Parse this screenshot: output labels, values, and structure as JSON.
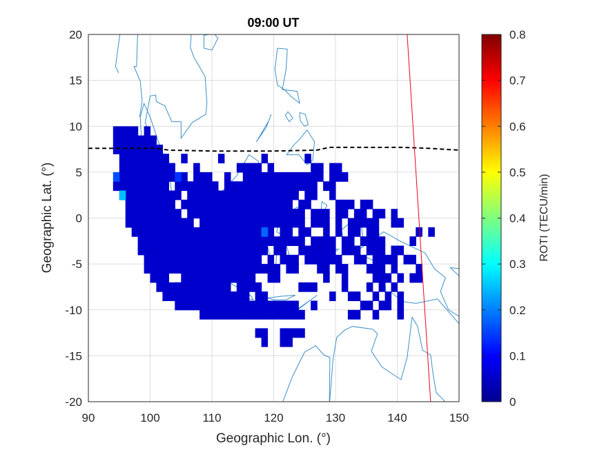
{
  "chart_data": {
    "type": "heatmap",
    "title": "09:00 UT",
    "xlabel": "Geographic Lon. (°)",
    "ylabel": "Geographic Lat. (°)",
    "xlim": [
      90,
      150
    ],
    "ylim": [
      -20,
      20
    ],
    "xticks": [
      "90",
      "100",
      "110",
      "120",
      "130",
      "140",
      "150"
    ],
    "yticks": [
      "20",
      "15",
      "10",
      "5",
      "0",
      "-5",
      "-10",
      "-15",
      "-20"
    ],
    "grid": true,
    "colorbar": {
      "label": "ROTI (TECU/min)",
      "range": [
        0,
        0.8
      ],
      "ticks": [
        "0",
        "0.1",
        "0.2",
        "0.3",
        "0.4",
        "0.5",
        "0.6",
        "0.7",
        "0.8"
      ],
      "colormap": "jet"
    },
    "roti_cells": {
      "cell_size_deg": 1,
      "typical_value": 0.06,
      "high_values": [
        {
          "lon": 95.5,
          "lat": 2.3,
          "value": 0.25
        },
        {
          "lon": 94.8,
          "lat": 4.2,
          "value": 0.16
        },
        {
          "lon": 104.5,
          "lat": 4.8,
          "value": 0.14
        },
        {
          "lon": 118.8,
          "lat": -1.2,
          "value": 0.18
        }
      ]
    },
    "magnetic_equator": {
      "style": "dashed",
      "color": "#000000",
      "lon": [
        90,
        101,
        103,
        110,
        120,
        127,
        129,
        134,
        141,
        145,
        150
      ],
      "lat": [
        7.6,
        7.6,
        7.4,
        7.3,
        7.3,
        7.4,
        7.7,
        7.7,
        7.7,
        7.6,
        7.4
      ]
    },
    "reference_line": {
      "color": "#e8001c",
      "lon": [
        141.6,
        145.4
      ],
      "lat": [
        20,
        -20
      ]
    },
    "coastline_color": "#3a8fc9"
  }
}
